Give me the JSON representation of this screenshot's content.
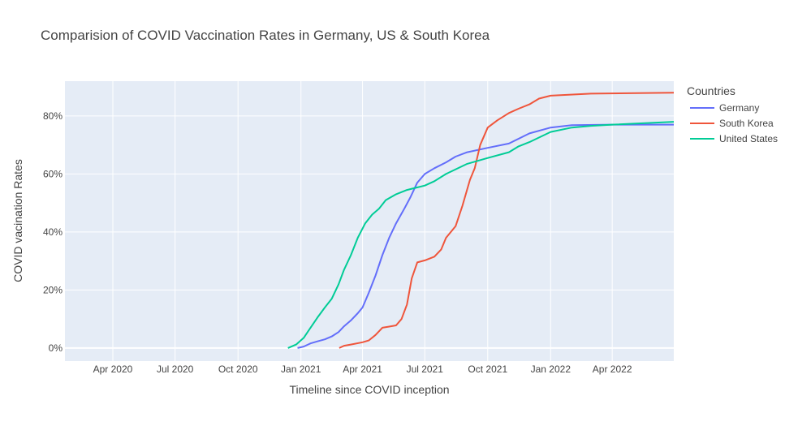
{
  "chart_data": {
    "type": "line",
    "title": "Comparision of COVID Vaccination Rates in Germany, US & South Korea",
    "xlabel": "Timeline since COVID inception",
    "ylabel": "COVID vacination Rates",
    "x_range": [
      "2020-01-22",
      "2022-06-30"
    ],
    "ylim": [
      -4.5,
      92
    ],
    "x_ticks": [
      {
        "date": "2020-04-01",
        "label": "Apr 2020"
      },
      {
        "date": "2020-07-01",
        "label": "Jul 2020"
      },
      {
        "date": "2020-10-01",
        "label": "Oct 2020"
      },
      {
        "date": "2021-01-01",
        "label": "Jan 2021"
      },
      {
        "date": "2021-04-01",
        "label": "Apr 2021"
      },
      {
        "date": "2021-07-01",
        "label": "Jul 2021"
      },
      {
        "date": "2021-10-01",
        "label": "Oct 2021"
      },
      {
        "date": "2022-01-01",
        "label": "Jan 2022"
      },
      {
        "date": "2022-04-01",
        "label": "Apr 2022"
      }
    ],
    "y_ticks": [
      {
        "value": 0,
        "label": "0%"
      },
      {
        "value": 20,
        "label": "20%"
      },
      {
        "value": 40,
        "label": "40%"
      },
      {
        "value": 60,
        "label": "60%"
      },
      {
        "value": 80,
        "label": "80%"
      }
    ],
    "grid": true,
    "legend": {
      "title": "Countries",
      "position": "right"
    },
    "series": [
      {
        "name": "Germany",
        "color": "#636efa",
        "points": [
          [
            "2020-12-27",
            0
          ],
          [
            "2021-01-05",
            0.5
          ],
          [
            "2021-01-15",
            1.6
          ],
          [
            "2021-01-25",
            2.3
          ],
          [
            "2021-02-05",
            3.0
          ],
          [
            "2021-02-15",
            4.0
          ],
          [
            "2021-02-25",
            5.5
          ],
          [
            "2021-03-05",
            7.5
          ],
          [
            "2021-03-15",
            9.5
          ],
          [
            "2021-03-25",
            12
          ],
          [
            "2021-04-01",
            14
          ],
          [
            "2021-04-10",
            19
          ],
          [
            "2021-04-20",
            25
          ],
          [
            "2021-04-30",
            32
          ],
          [
            "2021-05-10",
            38
          ],
          [
            "2021-05-20",
            43
          ],
          [
            "2021-06-01",
            48
          ],
          [
            "2021-06-10",
            52
          ],
          [
            "2021-06-20",
            57
          ],
          [
            "2021-07-01",
            60
          ],
          [
            "2021-07-15",
            62
          ],
          [
            "2021-08-01",
            64
          ],
          [
            "2021-08-15",
            66
          ],
          [
            "2021-09-01",
            67.5
          ],
          [
            "2021-10-01",
            69
          ],
          [
            "2021-11-01",
            70.5
          ],
          [
            "2021-12-01",
            74
          ],
          [
            "2022-01-01",
            76
          ],
          [
            "2022-02-01",
            76.8
          ],
          [
            "2022-04-01",
            77.0
          ],
          [
            "2022-06-30",
            77.0
          ]
        ]
      },
      {
        "name": "South Korea",
        "color": "#ef553b",
        "points": [
          [
            "2021-02-26",
            0
          ],
          [
            "2021-03-05",
            0.8
          ],
          [
            "2021-03-15",
            1.2
          ],
          [
            "2021-04-01",
            2.0
          ],
          [
            "2021-04-10",
            2.6
          ],
          [
            "2021-04-20",
            4.5
          ],
          [
            "2021-04-30",
            7.0
          ],
          [
            "2021-05-10",
            7.4
          ],
          [
            "2021-05-20",
            7.8
          ],
          [
            "2021-05-28",
            10
          ],
          [
            "2021-06-05",
            15
          ],
          [
            "2021-06-12",
            24
          ],
          [
            "2021-06-20",
            29.5
          ],
          [
            "2021-07-01",
            30.2
          ],
          [
            "2021-07-15",
            31.5
          ],
          [
            "2021-07-25",
            34
          ],
          [
            "2021-08-01",
            38
          ],
          [
            "2021-08-15",
            42
          ],
          [
            "2021-08-25",
            49
          ],
          [
            "2021-09-05",
            58
          ],
          [
            "2021-09-12",
            62
          ],
          [
            "2021-09-20",
            70
          ],
          [
            "2021-10-01",
            76
          ],
          [
            "2021-10-15",
            78.5
          ],
          [
            "2021-11-01",
            81
          ],
          [
            "2021-11-15",
            82.5
          ],
          [
            "2021-12-01",
            84
          ],
          [
            "2021-12-15",
            86
          ],
          [
            "2022-01-01",
            87
          ],
          [
            "2022-03-01",
            87.7
          ],
          [
            "2022-06-30",
            88.0
          ]
        ]
      },
      {
        "name": "United States",
        "color": "#00cc96",
        "points": [
          [
            "2020-12-13",
            0
          ],
          [
            "2020-12-25",
            1.2
          ],
          [
            "2021-01-05",
            3.5
          ],
          [
            "2021-01-15",
            7
          ],
          [
            "2021-01-25",
            10.5
          ],
          [
            "2021-02-05",
            14
          ],
          [
            "2021-02-15",
            17
          ],
          [
            "2021-02-25",
            22
          ],
          [
            "2021-03-05",
            27
          ],
          [
            "2021-03-15",
            32
          ],
          [
            "2021-03-25",
            38
          ],
          [
            "2021-04-05",
            43
          ],
          [
            "2021-04-15",
            46
          ],
          [
            "2021-04-25",
            48
          ],
          [
            "2021-05-05",
            51
          ],
          [
            "2021-05-20",
            53
          ],
          [
            "2021-06-05",
            54.5
          ],
          [
            "2021-07-01",
            56
          ],
          [
            "2021-07-15",
            57.5
          ],
          [
            "2021-08-01",
            60
          ],
          [
            "2021-09-01",
            63.5
          ],
          [
            "2021-10-01",
            65.5
          ],
          [
            "2021-11-01",
            67.5
          ],
          [
            "2021-11-15",
            69.5
          ],
          [
            "2021-12-01",
            71
          ],
          [
            "2022-01-01",
            74.5
          ],
          [
            "2022-02-01",
            76
          ],
          [
            "2022-03-01",
            76.6
          ],
          [
            "2022-04-01",
            77
          ],
          [
            "2022-06-30",
            78.0
          ]
        ]
      }
    ]
  }
}
